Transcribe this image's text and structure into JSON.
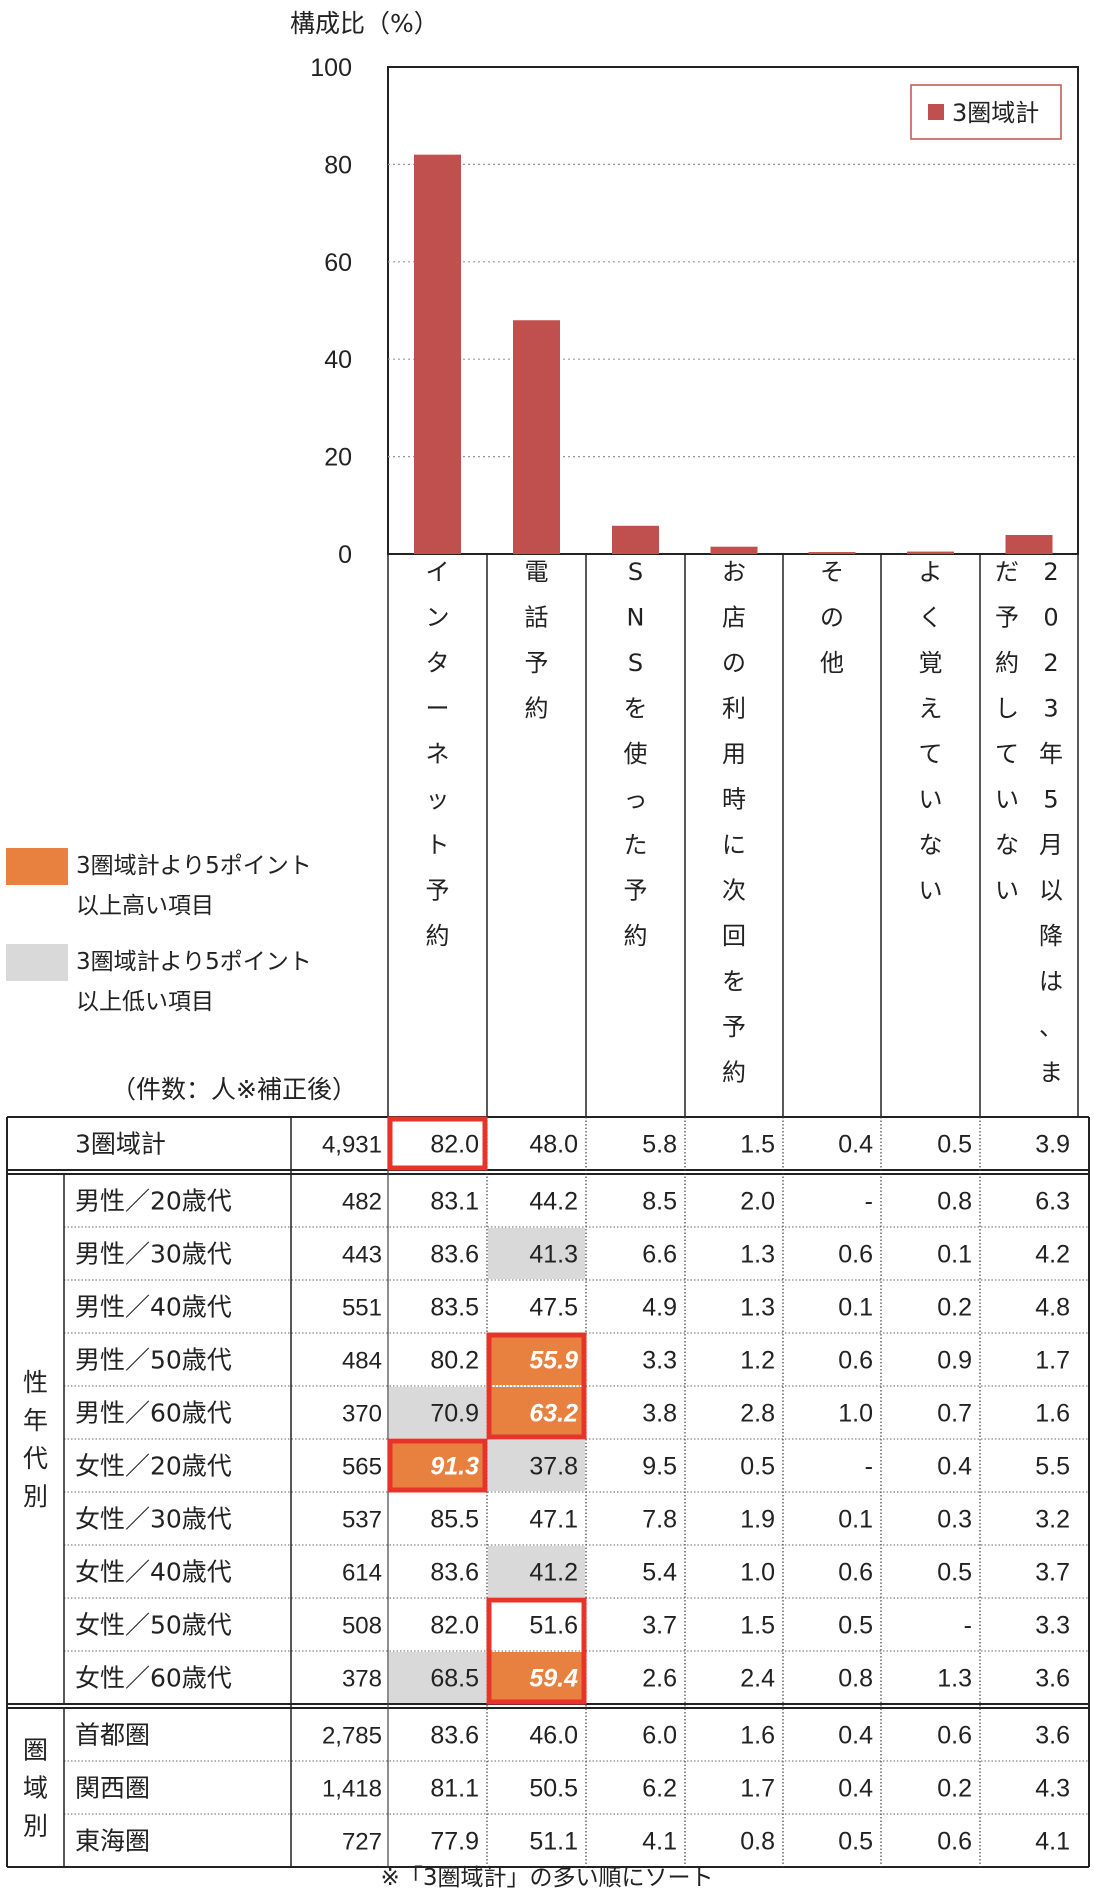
{
  "chart_data": {
    "type": "bar",
    "ylabel": "構成比（%）",
    "ylim": [
      0,
      100
    ],
    "yticks": [
      "0",
      "20",
      "40",
      "60",
      "80",
      "100"
    ],
    "grid": true,
    "legend_position": "top-right",
    "categories": [
      "インターネット予約",
      "電話予約",
      "SNSを使った予約",
      "お店の利用時に次回を予約",
      "その他",
      "よく覚えていない",
      "2023年5月以降は、まだ予約していない"
    ],
    "series": [
      {
        "name": "3圏域計",
        "color": "#c0504d",
        "values": [
          82.0,
          48.0,
          5.8,
          1.5,
          0.4,
          0.5,
          3.9
        ]
      }
    ]
  },
  "legend": {
    "high_color": "#e8803f",
    "high_line1": "3圏域計より5ポイント",
    "high_line2": "以上高い項目",
    "low_color": "#d9d9d9",
    "low_line1": "3圏域計より5ポイント",
    "low_line2": "以上低い項目"
  },
  "count_label": "（件数：人※補正後）",
  "footnote": "※「3圏域計」の多い順にソート",
  "table": {
    "total": {
      "label": "3圏域計",
      "n": "4,931",
      "values": [
        "82.0",
        "48.0",
        "5.8",
        "1.5",
        "0.4",
        "0.5",
        "3.9"
      ],
      "flags": [
        "",
        "",
        "",
        "",
        "",
        "",
        ""
      ]
    },
    "groups": [
      {
        "label": "性年代別",
        "rows": [
          {
            "label": "男性／20歳代",
            "n": "482",
            "values": [
              "83.1",
              "44.2",
              "8.5",
              "2.0",
              "-",
              "0.8",
              "6.3"
            ],
            "flags": [
              "",
              "",
              "",
              "",
              "",
              "",
              ""
            ]
          },
          {
            "label": "男性／30歳代",
            "n": "443",
            "values": [
              "83.6",
              "41.3",
              "6.6",
              "1.3",
              "0.6",
              "0.1",
              "4.2"
            ],
            "flags": [
              "",
              "low",
              "",
              "",
              "",
              "",
              ""
            ]
          },
          {
            "label": "男性／40歳代",
            "n": "551",
            "values": [
              "83.5",
              "47.5",
              "4.9",
              "1.3",
              "0.1",
              "0.2",
              "4.8"
            ],
            "flags": [
              "",
              "",
              "",
              "",
              "",
              "",
              ""
            ]
          },
          {
            "label": "男性／50歳代",
            "n": "484",
            "values": [
              "80.2",
              "55.9",
              "3.3",
              "1.2",
              "0.6",
              "0.9",
              "1.7"
            ],
            "flags": [
              "",
              "high",
              "",
              "",
              "",
              "",
              ""
            ]
          },
          {
            "label": "男性／60歳代",
            "n": "370",
            "values": [
              "70.9",
              "63.2",
              "3.8",
              "2.8",
              "1.0",
              "0.7",
              "1.6"
            ],
            "flags": [
              "low",
              "high",
              "",
              "",
              "",
              "",
              ""
            ]
          },
          {
            "label": "女性／20歳代",
            "n": "565",
            "values": [
              "91.3",
              "37.8",
              "9.5",
              "0.5",
              "-",
              "0.4",
              "5.5"
            ],
            "flags": [
              "high",
              "low",
              "",
              "",
              "",
              "",
              ""
            ]
          },
          {
            "label": "女性／30歳代",
            "n": "537",
            "values": [
              "85.5",
              "47.1",
              "7.8",
              "1.9",
              "0.1",
              "0.3",
              "3.2"
            ],
            "flags": [
              "",
              "",
              "",
              "",
              "",
              "",
              ""
            ]
          },
          {
            "label": "女性／40歳代",
            "n": "614",
            "values": [
              "83.6",
              "41.2",
              "5.4",
              "1.0",
              "0.6",
              "0.5",
              "3.7"
            ],
            "flags": [
              "",
              "low",
              "",
              "",
              "",
              "",
              ""
            ]
          },
          {
            "label": "女性／50歳代",
            "n": "508",
            "values": [
              "82.0",
              "51.6",
              "3.7",
              "1.5",
              "0.5",
              "-",
              "3.3"
            ],
            "flags": [
              "",
              "",
              "",
              "",
              "",
              "",
              ""
            ]
          },
          {
            "label": "女性／60歳代",
            "n": "378",
            "values": [
              "68.5",
              "59.4",
              "2.6",
              "2.4",
              "0.8",
              "1.3",
              "3.6"
            ],
            "flags": [
              "low",
              "high",
              "",
              "",
              "",
              "",
              ""
            ]
          }
        ]
      },
      {
        "label": "圏域別",
        "rows": [
          {
            "label": "首都圏",
            "n": "2,785",
            "values": [
              "83.6",
              "46.0",
              "6.0",
              "1.6",
              "0.4",
              "0.6",
              "3.6"
            ],
            "flags": [
              "",
              "",
              "",
              "",
              "",
              "",
              ""
            ]
          },
          {
            "label": "関西圏",
            "n": "1,418",
            "values": [
              "81.1",
              "50.5",
              "6.2",
              "1.7",
              "0.4",
              "0.2",
              "4.3"
            ],
            "flags": [
              "",
              "",
              "",
              "",
              "",
              "",
              ""
            ]
          },
          {
            "label": "東海圏",
            "n": "727",
            "values": [
              "77.9",
              "51.1",
              "4.1",
              "0.8",
              "0.5",
              "0.6",
              "4.1"
            ],
            "flags": [
              "",
              "",
              "",
              "",
              "",
              "",
              ""
            ]
          }
        ]
      }
    ]
  }
}
